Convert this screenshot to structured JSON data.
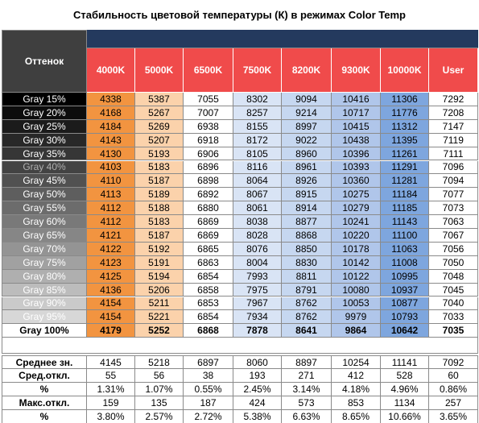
{
  "title": "Стабильность цветовой температуры (К) в режимах Color Temp",
  "header": {
    "label": "Оттенок",
    "columns": [
      "4000K",
      "5000K",
      "6500K",
      "7500K",
      "8200K",
      "9300K",
      "10000K",
      "User"
    ]
  },
  "rows": [
    {
      "label": "Gray 15%",
      "values": [
        4338,
        5387,
        7055,
        8302,
        9094,
        10416,
        11306,
        7292
      ]
    },
    {
      "label": "Gray 20%",
      "values": [
        4168,
        5267,
        7007,
        8257,
        9214,
        10717,
        11776,
        7208
      ]
    },
    {
      "label": "Gray 25%",
      "values": [
        4184,
        5269,
        6938,
        8155,
        8997,
        10415,
        11312,
        7147
      ]
    },
    {
      "label": "Gray 30%",
      "values": [
        4143,
        5207,
        6918,
        8172,
        9022,
        10438,
        11395,
        7119
      ]
    },
    {
      "label": "Gray 35%",
      "values": [
        4130,
        5193,
        6906,
        8105,
        8960,
        10396,
        11261,
        7111
      ]
    },
    {
      "label": "Gray 40%",
      "values": [
        4103,
        5183,
        6896,
        8116,
        8961,
        10393,
        11291,
        7096
      ]
    },
    {
      "label": "Gray 45%",
      "values": [
        4110,
        5187,
        6898,
        8064,
        8926,
        10360,
        11281,
        7094
      ]
    },
    {
      "label": "Gray 50%",
      "values": [
        4113,
        5189,
        6892,
        8067,
        8915,
        10275,
        11184,
        7077
      ]
    },
    {
      "label": "Gray 55%",
      "values": [
        4112,
        5188,
        6880,
        8061,
        8914,
        10279,
        11185,
        7073
      ]
    },
    {
      "label": "Gray 60%",
      "values": [
        4112,
        5183,
        6869,
        8038,
        8877,
        10241,
        11143,
        7063
      ]
    },
    {
      "label": "Gray 65%",
      "values": [
        4121,
        5187,
        6869,
        8028,
        8868,
        10220,
        11100,
        7067
      ]
    },
    {
      "label": "Gray 70%",
      "values": [
        4122,
        5192,
        6865,
        8076,
        8850,
        10178,
        11063,
        7056
      ]
    },
    {
      "label": "Gray 75%",
      "values": [
        4123,
        5191,
        6863,
        8004,
        8830,
        10142,
        11008,
        7050
      ]
    },
    {
      "label": "Gray 80%",
      "values": [
        4125,
        5194,
        6854,
        7993,
        8811,
        10122,
        10995,
        7048
      ]
    },
    {
      "label": "Gray 85%",
      "values": [
        4136,
        5206,
        6858,
        7975,
        8791,
        10080,
        10937,
        7045
      ]
    },
    {
      "label": "Gray 90%",
      "values": [
        4154,
        5211,
        6853,
        7967,
        8762,
        10053,
        10877,
        7040
      ]
    },
    {
      "label": "Gray 95%",
      "values": [
        4154,
        5221,
        6854,
        7934,
        8762,
        9979,
        10793,
        7033
      ]
    },
    {
      "label": "Gray 100%",
      "values": [
        4179,
        5252,
        6868,
        7878,
        8641,
        9864,
        10642,
        7035
      ]
    }
  ],
  "summary": [
    {
      "label": "Среднее зн.",
      "values": [
        4145,
        5218,
        6897,
        8060,
        8897,
        10254,
        11141,
        7092
      ]
    },
    {
      "label": "Сред.откл.",
      "values": [
        55,
        56,
        38,
        193,
        271,
        412,
        528,
        60
      ]
    },
    {
      "label": "%",
      "values": [
        "1.31%",
        "1.07%",
        "0.55%",
        "2.45%",
        "3.14%",
        "4.18%",
        "4.96%",
        "0.86%"
      ]
    },
    {
      "label": "Макс.откл.",
      "values": [
        159,
        135,
        187,
        424,
        573,
        853,
        1134,
        257
      ]
    },
    {
      "label": "%",
      "values": [
        "3.80%",
        "2.57%",
        "2.72%",
        "5.38%",
        "6.63%",
        "8.65%",
        "10.66%",
        "3.65%"
      ]
    }
  ]
}
